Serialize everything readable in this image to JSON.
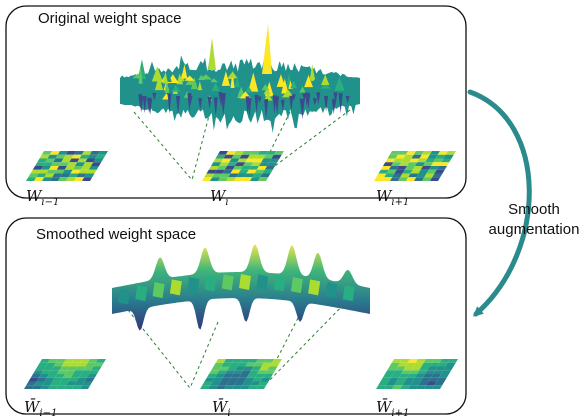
{
  "panels": {
    "top": {
      "title": "Original weight space"
    },
    "bottom": {
      "title": "Smoothed weight space"
    }
  },
  "arrow": {
    "line1": "Smooth",
    "line2": "augmentation"
  },
  "labels": {
    "top": [
      {
        "base": "W",
        "sub": "i−1"
      },
      {
        "base": "W",
        "sub": "i"
      },
      {
        "base": "W",
        "sub": "i+1"
      }
    ],
    "bottom": [
      {
        "base": "W̄",
        "sub": "i−1"
      },
      {
        "base": "W̄",
        "sub": "i"
      },
      {
        "base": "W̄",
        "sub": "i+1"
      }
    ]
  },
  "colors": {
    "teal_arrow": "#2a8a8c",
    "viridis_dark": "#3b4a8c",
    "viridis_mid": "#21918c",
    "viridis_light": "#5ec962",
    "viridis_yellow": "#fde725",
    "dashed_line": "#2e7d32"
  }
}
